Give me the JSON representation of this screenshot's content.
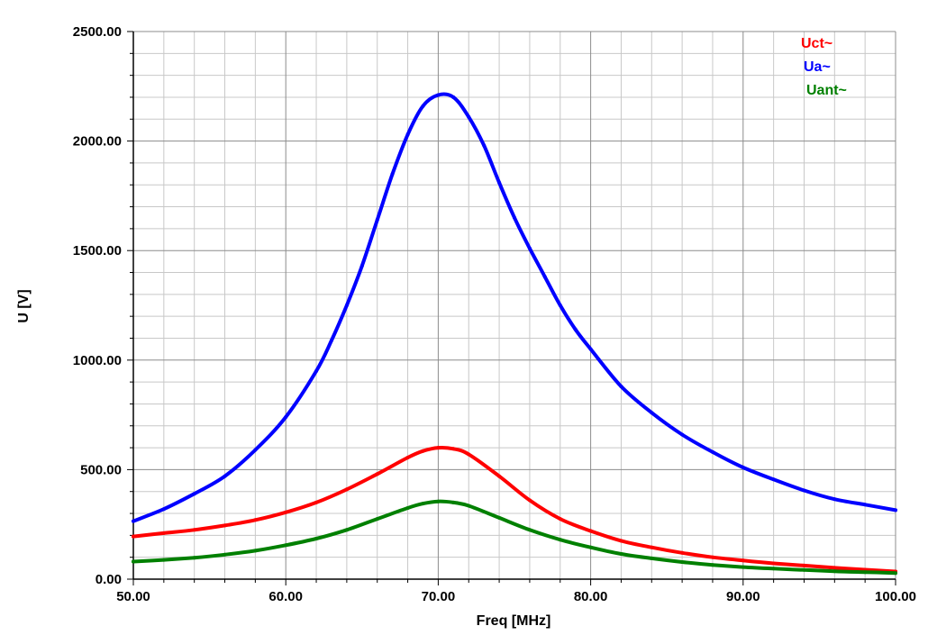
{
  "chart_data": {
    "type": "line",
    "title": "",
    "xlabel": "Freq [MHz]",
    "ylabel": "U [V]",
    "xlim": [
      50,
      100
    ],
    "ylim": [
      0,
      2500
    ],
    "x_ticks": [
      50,
      60,
      70,
      80,
      90,
      100
    ],
    "x_tick_labels": [
      "50.00",
      "60.00",
      "70.00",
      "80.00",
      "90.00",
      "100.00"
    ],
    "y_ticks": [
      0,
      500,
      1000,
      1500,
      2000,
      2500
    ],
    "y_tick_labels": [
      "0.00",
      "500.00",
      "1000.00",
      "1500.00",
      "2000.00",
      "2500.00"
    ],
    "grid": true,
    "legend_position": "top-right",
    "series": [
      {
        "name": "Uct~",
        "color": "#ff0000",
        "x": [
          50,
          52,
          54,
          56,
          58,
          60,
          62,
          64,
          66,
          68,
          69,
          70,
          71,
          72,
          74,
          76,
          78,
          80,
          82,
          84,
          86,
          88,
          90,
          92,
          94,
          96,
          98,
          100
        ],
        "y": [
          195,
          210,
          225,
          245,
          270,
          305,
          350,
          410,
          480,
          555,
          585,
          600,
          595,
          570,
          470,
          360,
          275,
          220,
          175,
          145,
          120,
          100,
          85,
          72,
          62,
          52,
          43,
          35
        ]
      },
      {
        "name": "Ua~",
        "color": "#0000ff",
        "x": [
          50,
          52,
          54,
          56,
          58,
          60,
          62,
          63,
          64,
          65,
          66,
          67,
          68,
          69,
          70,
          71,
          72,
          73,
          74,
          75,
          76,
          77,
          78,
          79,
          80,
          82,
          84,
          86,
          88,
          90,
          92,
          94,
          96,
          98,
          100
        ],
        "y": [
          265,
          320,
          390,
          470,
          590,
          740,
          950,
          1090,
          1250,
          1430,
          1640,
          1850,
          2030,
          2160,
          2210,
          2200,
          2110,
          1980,
          1810,
          1650,
          1510,
          1380,
          1250,
          1140,
          1050,
          880,
          760,
          660,
          580,
          510,
          455,
          405,
          365,
          340,
          315
        ]
      },
      {
        "name": "Uant~",
        "color": "#008000",
        "x": [
          50,
          52,
          54,
          56,
          58,
          60,
          62,
          64,
          66,
          68,
          69,
          70,
          71,
          72,
          74,
          76,
          78,
          80,
          82,
          84,
          86,
          88,
          90,
          92,
          94,
          96,
          98,
          100
        ],
        "y": [
          80,
          88,
          98,
          112,
          130,
          155,
          185,
          225,
          275,
          325,
          345,
          355,
          350,
          335,
          280,
          225,
          180,
          145,
          115,
          95,
          78,
          65,
          55,
          48,
          42,
          36,
          32,
          28
        ]
      }
    ]
  }
}
